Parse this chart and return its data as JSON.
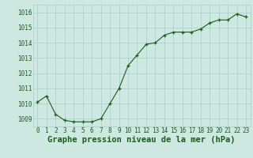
{
  "x": [
    0,
    1,
    2,
    3,
    4,
    5,
    6,
    7,
    8,
    9,
    10,
    11,
    12,
    13,
    14,
    15,
    16,
    17,
    18,
    19,
    20,
    21,
    22,
    23
  ],
  "y": [
    1010.1,
    1010.5,
    1009.3,
    1008.9,
    1008.8,
    1008.8,
    1008.8,
    1009.0,
    1010.0,
    1011.0,
    1012.5,
    1013.2,
    1013.9,
    1014.0,
    1014.5,
    1014.7,
    1014.7,
    1014.7,
    1014.9,
    1015.3,
    1015.5,
    1015.5,
    1015.9,
    1015.7
  ],
  "ylim": [
    1008.5,
    1016.5
  ],
  "yticks": [
    1009,
    1010,
    1011,
    1012,
    1013,
    1014,
    1015,
    1016
  ],
  "xticks": [
    0,
    1,
    2,
    3,
    4,
    5,
    6,
    7,
    8,
    9,
    10,
    11,
    12,
    13,
    14,
    15,
    16,
    17,
    18,
    19,
    20,
    21,
    22,
    23
  ],
  "line_color": "#1a5c1a",
  "marker_color": "#1a5c1a",
  "bg_plot": "#cce8e0",
  "bg_fig": "#cce8e0",
  "grid_color": "#aacccc",
  "xlabel": "Graphe pression niveau de la mer (hPa)",
  "xlabel_color": "#1a5c1a",
  "tick_color": "#1a5c1a",
  "font_size_xlabel": 7.5,
  "font_size_ticks": 5.5
}
